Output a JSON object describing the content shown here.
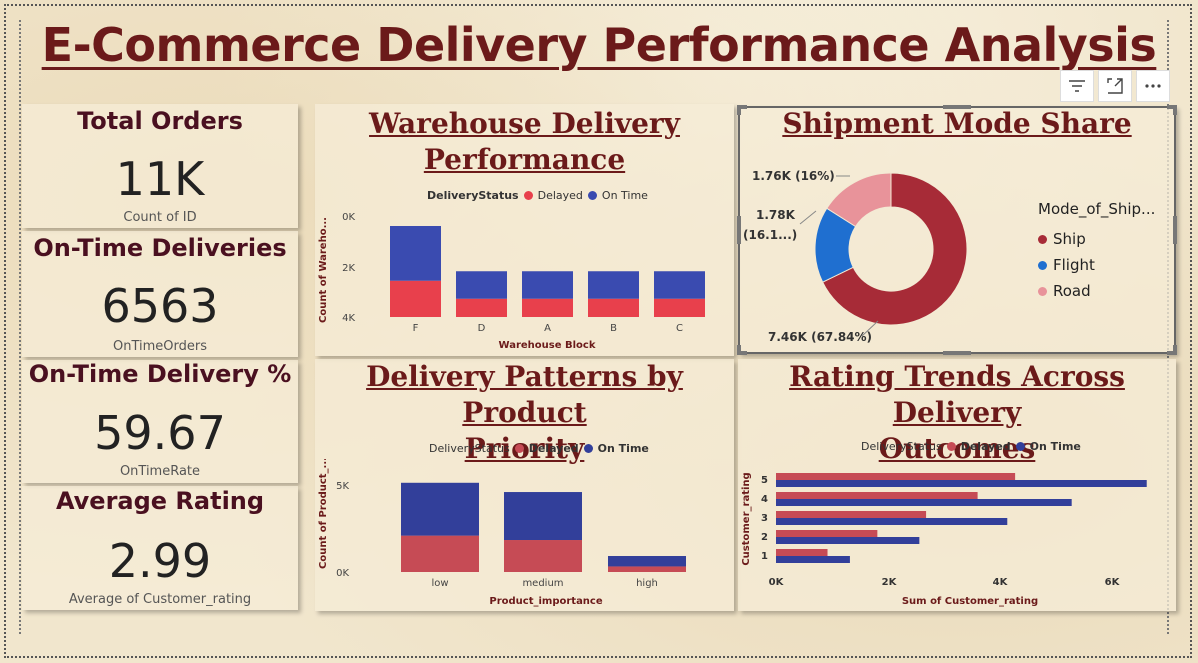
{
  "page": {
    "title": "E-Commerce Delivery Performance Analysis"
  },
  "kpis": [
    {
      "title": "Total Orders",
      "value": "11K",
      "label": "Count of ID"
    },
    {
      "title": "On-Time Deliveries",
      "value": "6563",
      "label": "OnTimeOrders"
    },
    {
      "title": "On-Time Delivery %",
      "value": "59.67",
      "label": "OnTimeRate"
    },
    {
      "title": "Average Rating",
      "value": "2.99",
      "label": "Average of Customer_rating"
    }
  ],
  "colors": {
    "delayed": "#e8404c",
    "on_time": "#3a4bb0",
    "delayed_muted": "#c64b55",
    "on_time_dark": "#323f9a",
    "ship": "#a72b37",
    "flight": "#1f6fd0",
    "road": "#e8939a",
    "title": "#6b1a1a"
  },
  "warehouse": {
    "title_line1": "Warehouse Delivery",
    "title_line2": "Performance",
    "legend_title": "DeliveryStatus",
    "legend_delayed": "Delayed",
    "legend_on_time": "On Time",
    "ylabel": "Count of Wareho...",
    "xlabel": "Warehouse Block",
    "yticks": [
      "4K",
      "2K",
      "0K"
    ]
  },
  "shipment": {
    "title": "Shipment Mode Share",
    "legend_title": "Mode_of_Ship...",
    "legend": [
      "Ship",
      "Flight",
      "Road"
    ],
    "label_road": "1.76K (16%)",
    "label_flight_1": "1.78K",
    "label_flight_2": "(16.1...)",
    "label_ship": "7.46K (67.84%)"
  },
  "priority": {
    "title_line1": "Delivery Patterns by Product",
    "title_line2": "Priority",
    "legend_title": "DeliveryStatus",
    "legend_delayed": "Delayed",
    "legend_on_time": "On Time",
    "ylabel": "Count of Product_...",
    "xlabel": "Product_importance",
    "yticks": [
      "5K",
      "0K"
    ]
  },
  "rating": {
    "title_line1": "Rating Trends Across Delivery",
    "title_line2": "Outcomes",
    "legend_title": "DeliveryStatus",
    "legend_delayed": "Delayed",
    "legend_on_time": "On Time",
    "ylabel": "Customer_rating",
    "xlabel": "Sum of Customer_rating",
    "xticks": [
      "0K",
      "2K",
      "4K",
      "6K"
    ]
  },
  "chart_data": [
    {
      "type": "bar",
      "stacked": true,
      "title": "Warehouse Delivery Performance",
      "xlabel": "Warehouse Block",
      "ylabel": "Count of Wareho...",
      "categories": [
        "F",
        "D",
        "A",
        "B",
        "C"
      ],
      "series": [
        {
          "name": "Delayed",
          "values": [
            1450,
            730,
            730,
            730,
            730
          ]
        },
        {
          "name": "On Time",
          "values": [
            2190,
            1100,
            1100,
            1100,
            1100
          ]
        }
      ],
      "ylim": [
        0,
        4000
      ],
      "legend": "top"
    },
    {
      "type": "pie",
      "donut": true,
      "title": "Shipment Mode Share",
      "legend_title": "Mode_of_Ship...",
      "slices": [
        {
          "label": "Ship",
          "value": 7460,
          "percent": 67.84
        },
        {
          "label": "Flight",
          "value": 1780,
          "percent": 16.1
        },
        {
          "label": "Road",
          "value": 1760,
          "percent": 16
        }
      ],
      "legend": "right"
    },
    {
      "type": "bar",
      "stacked": true,
      "title": "Delivery Patterns by Product Priority",
      "xlabel": "Product_importance",
      "ylabel": "Count of Product_...",
      "categories": [
        "low",
        "medium",
        "high"
      ],
      "series": [
        {
          "name": "Delayed",
          "values": [
            2160,
            1900,
            330
          ]
        },
        {
          "name": "On Time",
          "values": [
            3140,
            2850,
            620
          ]
        }
      ],
      "ylim": [
        0,
        6000
      ],
      "legend": "top"
    },
    {
      "type": "bar",
      "orientation": "horizontal",
      "title": "Rating Trends Across Delivery Outcomes",
      "xlabel": "Sum of Customer_rating",
      "ylabel": "Customer_rating",
      "categories": [
        "5",
        "4",
        "3",
        "2",
        "1"
      ],
      "series": [
        {
          "name": "Delayed",
          "values": [
            4270,
            3600,
            2680,
            1810,
            920
          ]
        },
        {
          "name": "On Time",
          "values": [
            6620,
            5280,
            4130,
            2560,
            1320
          ]
        }
      ],
      "xlim": [
        0,
        7000
      ],
      "legend": "top"
    }
  ]
}
